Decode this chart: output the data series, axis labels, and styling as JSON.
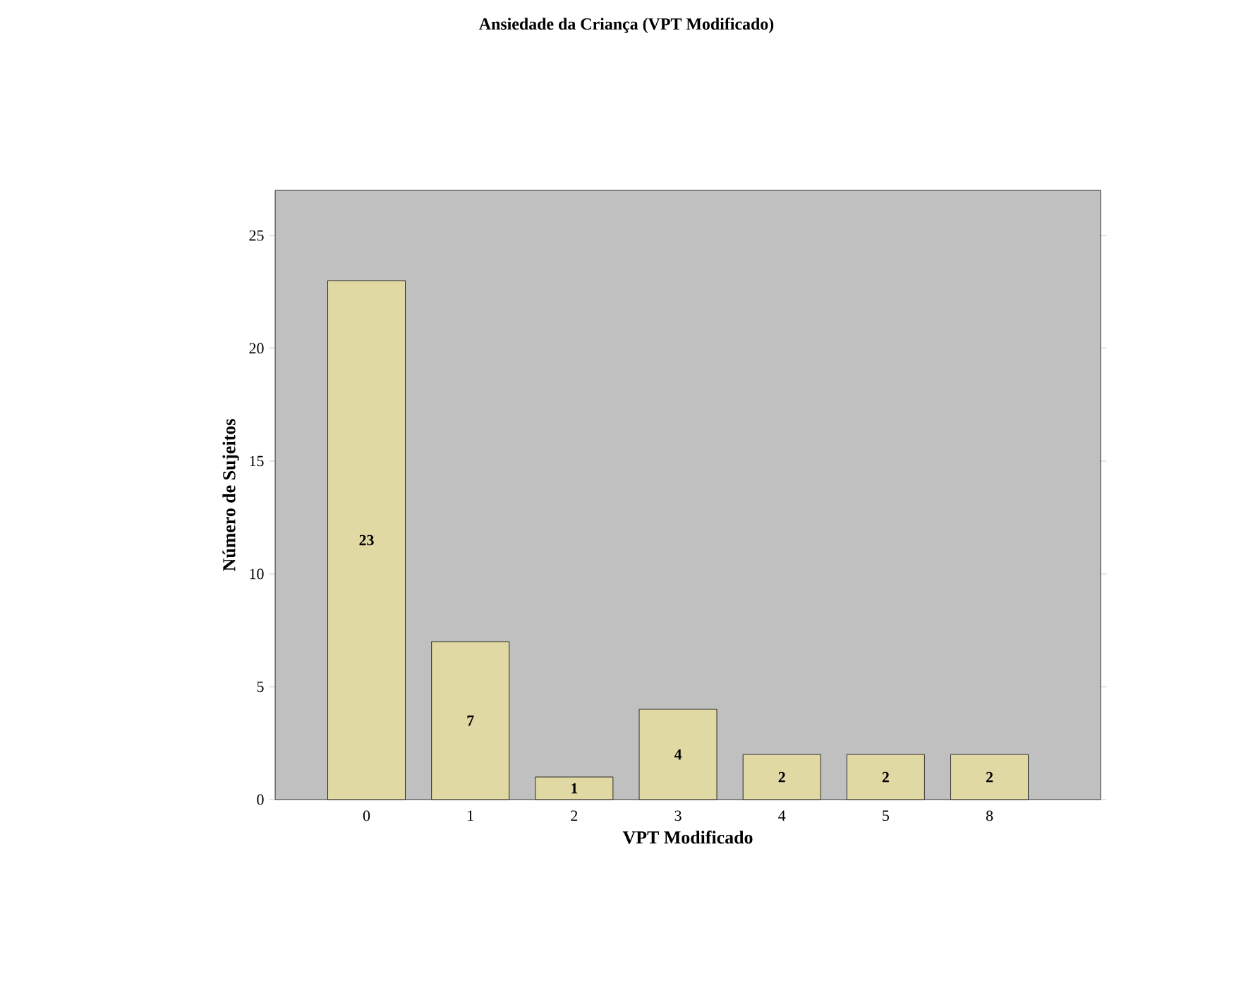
{
  "chart_data": {
    "type": "bar",
    "title": "Ansiedade da Criança (VPT Modificado)",
    "xlabel": "VPT Modificado",
    "ylabel": "Número de Sujeitos",
    "categories": [
      "0",
      "1",
      "2",
      "3",
      "4",
      "5",
      "8"
    ],
    "values": [
      23,
      7,
      1,
      4,
      2,
      2,
      2
    ],
    "color": "#e0d9a3",
    "ylim": [
      0,
      27
    ],
    "yticks": [
      0,
      5,
      10,
      15,
      20,
      25
    ],
    "data_labels": true
  }
}
